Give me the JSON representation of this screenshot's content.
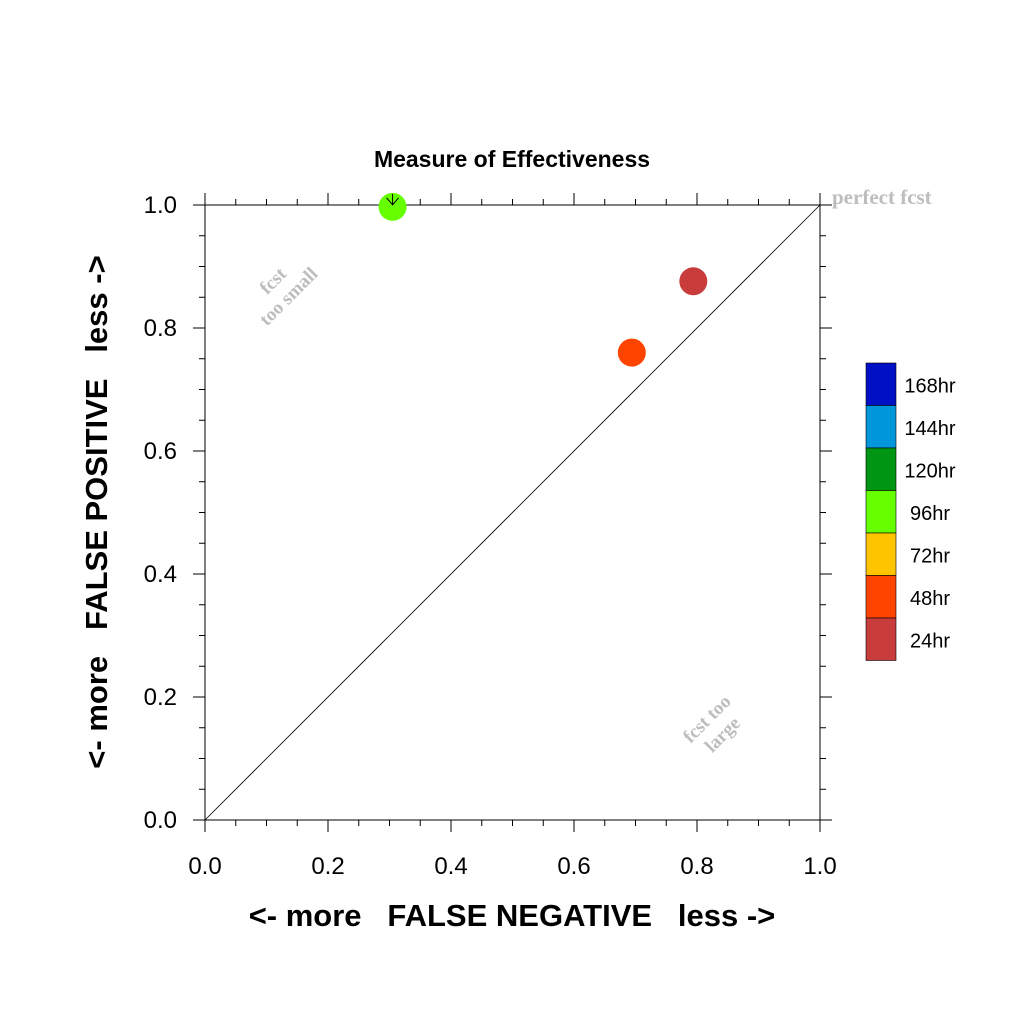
{
  "chart_data": {
    "type": "scatter",
    "title": "Measure of Effectiveness",
    "xlabel": "<- more   FALSE NEGATIVE   less ->",
    "ylabel": "<- more   FALSE POSITIVE   less ->",
    "xlim": [
      0.0,
      1.0
    ],
    "ylim": [
      0.0,
      1.0
    ],
    "x_ticks": [
      "0.0",
      "0.2",
      "0.4",
      "0.6",
      "0.8",
      "1.0"
    ],
    "y_ticks": [
      "0.0",
      "0.2",
      "0.4",
      "0.6",
      "0.8",
      "1.0"
    ],
    "grid": false,
    "diagonal_line": true,
    "annotations": {
      "perfect": "perfect fcst",
      "too_small_line1": "fcst",
      "too_small_line2": "too small",
      "too_large_line1": "fcst too",
      "too_large_line2": "large"
    },
    "points": [
      {
        "label": "96hr",
        "x": 0.305,
        "y": 0.997,
        "color": "#66ff00"
      },
      {
        "label": "48hr",
        "x": 0.694,
        "y": 0.76,
        "color": "#ff4400"
      },
      {
        "label": "24hr",
        "x": 0.794,
        "y": 0.876,
        "color": "#c83c3c"
      }
    ],
    "legend_placement": "right",
    "legend": [
      {
        "label": "168hr",
        "color": "#0010c4"
      },
      {
        "label": "144hr",
        "color": "#0096dc"
      },
      {
        "label": "120hr",
        "color": "#009614"
      },
      {
        "label": "96hr",
        "color": "#66ff00"
      },
      {
        "label": "72hr",
        "color": "#ffc400"
      },
      {
        "label": "48hr",
        "color": "#ff4400"
      },
      {
        "label": "24hr",
        "color": "#c83c3c"
      }
    ],
    "annotation_color": "#bdbdbd"
  }
}
